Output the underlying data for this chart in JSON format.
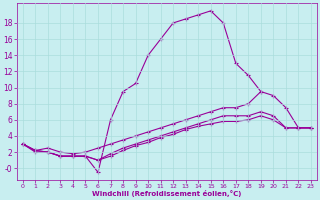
{
  "xlabel": "Windchill (Refroidissement éolien,°C)",
  "bg_color": "#c8eef0",
  "line_color": "#990099",
  "grid_color": "#aadddd",
  "xlim": [
    -0.5,
    23.5
  ],
  "ylim": [
    -1.5,
    20.5
  ],
  "xticks": [
    0,
    1,
    2,
    3,
    4,
    5,
    6,
    7,
    8,
    9,
    10,
    11,
    12,
    13,
    14,
    15,
    16,
    17,
    18,
    19,
    20,
    21,
    22,
    23
  ],
  "yticks": [
    0,
    2,
    4,
    6,
    8,
    10,
    12,
    14,
    16,
    18
  ],
  "curve1_x": [
    0,
    1,
    2,
    3,
    4,
    5,
    6,
    7,
    8,
    9,
    10,
    11,
    12,
    13,
    14,
    15,
    16,
    17,
    18,
    19
  ],
  "curve1_y": [
    3,
    2,
    2,
    1.5,
    1.5,
    1.5,
    -0.5,
    6,
    9.5,
    10.5,
    14,
    16,
    18,
    18.5,
    19,
    19.5,
    18,
    13,
    11.5,
    9.5
  ],
  "curve2_x": [
    0,
    1,
    2,
    3,
    4,
    5,
    6,
    7,
    8,
    9,
    10,
    11,
    12,
    13,
    14,
    15,
    16,
    17,
    18,
    19,
    20,
    21,
    22,
    23
  ],
  "curve2_y": [
    3,
    2.2,
    2.5,
    2,
    1.8,
    2,
    2.5,
    3,
    3.5,
    4,
    4.5,
    5,
    5.5,
    6,
    6.5,
    7,
    7.5,
    7.5,
    8,
    9.5,
    9,
    7.5,
    5,
    5
  ],
  "curve3_x": [
    0,
    1,
    2,
    3,
    4,
    5,
    6,
    7,
    8,
    9,
    10,
    11,
    12,
    13,
    14,
    15,
    16,
    17,
    18,
    19,
    20,
    21,
    22,
    23
  ],
  "curve3_y": [
    3,
    2.2,
    2,
    1.5,
    1.5,
    1.5,
    1,
    1.8,
    2.5,
    3,
    3.5,
    4,
    4.5,
    5,
    5.5,
    6,
    6.5,
    6.5,
    6.5,
    7,
    6.5,
    5,
    5,
    5
  ],
  "curve4_x": [
    0,
    1,
    2,
    3,
    4,
    5,
    6,
    7,
    8,
    9,
    10,
    11,
    12,
    13,
    14,
    15,
    16,
    17,
    18,
    19,
    20,
    21,
    22,
    23
  ],
  "curve4_y": [
    3,
    2.2,
    2,
    1.5,
    1.5,
    1.5,
    1,
    1.5,
    2.2,
    2.8,
    3.2,
    3.8,
    4.2,
    4.8,
    5.2,
    5.5,
    5.8,
    5.8,
    6,
    6.5,
    6,
    5,
    5,
    5
  ]
}
